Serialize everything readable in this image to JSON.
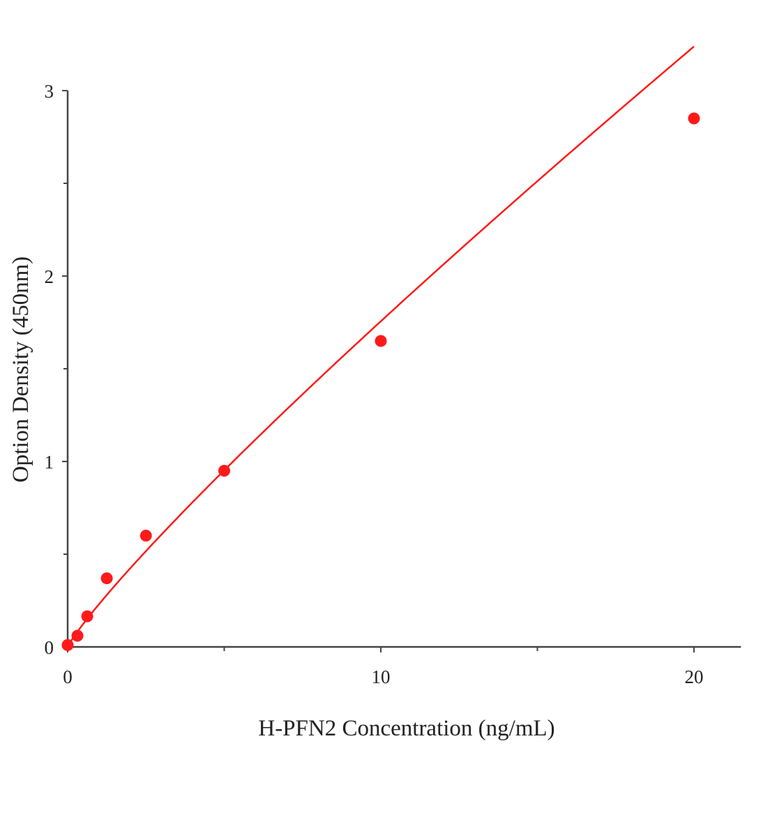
{
  "chart_data": {
    "type": "scatter",
    "title": "",
    "xlabel": "H-PFN2 Concentration (ng/mL)",
    "ylabel": "Option Density (450nm)",
    "xlim": [
      0,
      21.5
    ],
    "ylim": [
      0,
      3
    ],
    "x_ticks": [
      0,
      10,
      20
    ],
    "x_minor_ticks": [
      5,
      15
    ],
    "y_ticks": [
      0,
      1,
      2,
      3
    ],
    "y_minor_ticks": [
      0.5,
      1.5,
      2.5
    ],
    "grid": false,
    "color": "#ff1a1a",
    "series": [
      {
        "x": [
          0,
          0.3125,
          0.625,
          1.25,
          2.5,
          5,
          10,
          20
        ],
        "y": [
          0.01,
          0.06,
          0.165,
          0.37,
          0.6,
          0.95,
          1.65,
          2.85
        ],
        "fit_curve": true
      }
    ]
  }
}
